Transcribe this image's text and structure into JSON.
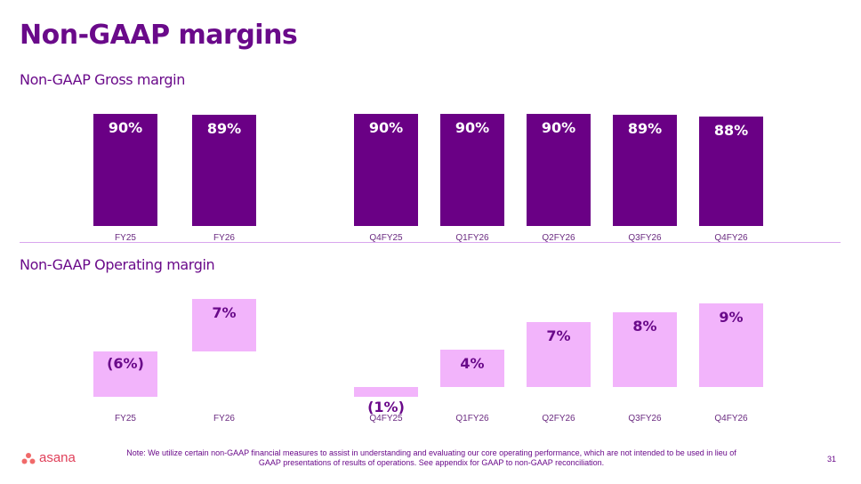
{
  "title": "Non-GAAP margins",
  "chart_data": [
    {
      "type": "bar",
      "title": "Non-GAAP Gross margin",
      "categories": [
        "FY25",
        "FY26",
        "Q4FY25",
        "Q1FY26",
        "Q2FY26",
        "Q3FY26",
        "Q4FY26"
      ],
      "values": [
        90,
        89,
        90,
        90,
        90,
        89,
        88
      ],
      "labels": [
        "90%",
        "89%",
        "90%",
        "90%",
        "90%",
        "89%",
        "88%"
      ],
      "unit": "%",
      "color": "#6a0085"
    },
    {
      "type": "bar",
      "title": "Non-GAAP Operating margin",
      "categories": [
        "FY25",
        "FY26",
        "Q4FY25",
        "Q1FY26",
        "Q2FY26",
        "Q3FY26",
        "Q4FY26"
      ],
      "values": [
        -6,
        7,
        -1,
        4,
        7,
        8,
        9
      ],
      "labels": [
        "(6%)",
        "7%",
        "(1%)",
        "4%",
        "7%",
        "8%",
        "9%"
      ],
      "unit": "%",
      "color": "#f2b4fb"
    }
  ],
  "footer": {
    "logo_text": "asana",
    "note": "Note: We utilize certain non-GAAP financial measures to assist in understanding and evaluating our core operating performance, which are not intended to be used in lieu of GAAP presentations of results of operations. See appendix for GAAP to non-GAAP reconciliation.",
    "page_number": "31"
  }
}
